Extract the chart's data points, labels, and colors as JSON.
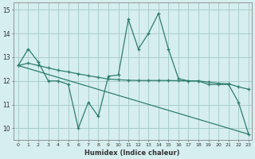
{
  "title": "",
  "xlabel": "Humidex (Indice chaleur)",
  "ylabel": "",
  "background_color": "#d6eeee",
  "grid_color": "#aacccc",
  "line_color": "#2e7d6e",
  "xlim": [
    -0.5,
    23.3
  ],
  "ylim": [
    9.5,
    15.3
  ],
  "yticks": [
    10,
    11,
    12,
    13,
    14,
    15
  ],
  "xticks": [
    0,
    1,
    2,
    3,
    4,
    5,
    6,
    7,
    8,
    9,
    10,
    11,
    12,
    13,
    14,
    15,
    16,
    17,
    18,
    19,
    20,
    21,
    22,
    23
  ],
  "line1_x": [
    0,
    1,
    2,
    3,
    4,
    5,
    6,
    7,
    8,
    9,
    10,
    11,
    12,
    13,
    14,
    15,
    16,
    17,
    18,
    19,
    20,
    21,
    22,
    23
  ],
  "line1_y": [
    12.65,
    13.35,
    12.8,
    12.0,
    12.0,
    11.85,
    10.0,
    11.1,
    10.5,
    12.2,
    12.25,
    14.6,
    13.35,
    14.0,
    14.85,
    13.35,
    12.1,
    12.0,
    12.0,
    11.85,
    11.85,
    11.85,
    11.1,
    9.75
  ],
  "line2_x": [
    0,
    1,
    2,
    3,
    4,
    5,
    6,
    7,
    8,
    9,
    10,
    11,
    12,
    13,
    14,
    15,
    16,
    17,
    18,
    19,
    20,
    21,
    22,
    23
  ],
  "line2_y": [
    12.65,
    12.75,
    12.65,
    12.55,
    12.45,
    12.38,
    12.3,
    12.22,
    12.15,
    12.08,
    12.05,
    12.03,
    12.02,
    12.02,
    12.02,
    12.02,
    12.01,
    12.0,
    12.0,
    11.95,
    11.9,
    11.88,
    11.75,
    11.65
  ],
  "line3_x": [
    0,
    23
  ],
  "line3_y": [
    12.65,
    9.75
  ]
}
